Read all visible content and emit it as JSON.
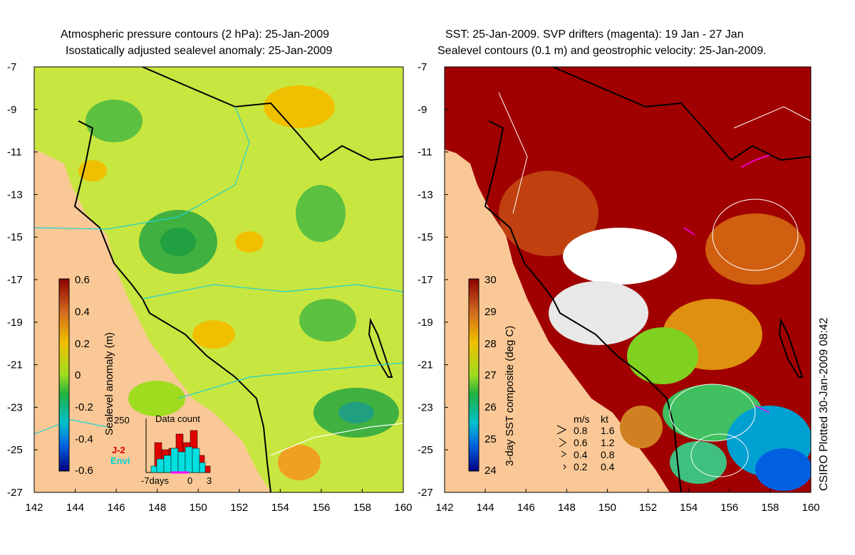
{
  "left_panel": {
    "title_line1": "Atmospheric pressure contours (2 hPa): 25-Jan-2009",
    "title_line2": "Isostatically adjusted sealevel anomaly: 25-Jan-2009",
    "colorbar": {
      "label": "Sealevel anomaly (m)",
      "ticks": [
        "0.6",
        "0.4",
        "0.2",
        "0",
        "-0.2",
        "-0.4",
        "-0.6"
      ]
    },
    "inset": {
      "title": "Data count",
      "ymax_label": "250",
      "x_ticks": [
        "-7days",
        "0",
        "3"
      ],
      "legend": [
        "J-2",
        "Envi"
      ],
      "legend_colors": [
        "#e00000",
        "#00e0e0"
      ]
    }
  },
  "right_panel": {
    "title_line1": "SST: 25-Jan-2009. SVP drifters (magenta): 19 Jan - 27 Jan",
    "title_line2": "Sealevel contours (0.1 m) and geostrophic velocity: 25-Jan-2009.",
    "colorbar": {
      "label": "3-day SST composite (deg C)",
      "ticks": [
        "30",
        "29",
        "28",
        "27",
        "26",
        "25",
        "24"
      ]
    },
    "speed_key": {
      "header": [
        "m/s",
        "kt"
      ],
      "rows": [
        [
          "0.8",
          "1.6"
        ],
        [
          "0.6",
          "1.2"
        ],
        [
          "0.4",
          "0.8"
        ],
        [
          "0.2",
          "0.4"
        ]
      ]
    }
  },
  "axes": {
    "y_ticks": [
      "-7",
      "-9",
      "-11",
      "-13",
      "-15",
      "-17",
      "-19",
      "-21",
      "-23",
      "-25",
      "-27"
    ],
    "x_ticks": [
      "142",
      "144",
      "146",
      "148",
      "150",
      "152",
      "154",
      "156",
      "158",
      "160"
    ]
  },
  "credit": "CSIRO Plotted 30-Jan-2009 08:42",
  "colors": {
    "land": "#f9c896",
    "sst_warm": "#a00000",
    "anomaly_base": "#c8e640"
  }
}
